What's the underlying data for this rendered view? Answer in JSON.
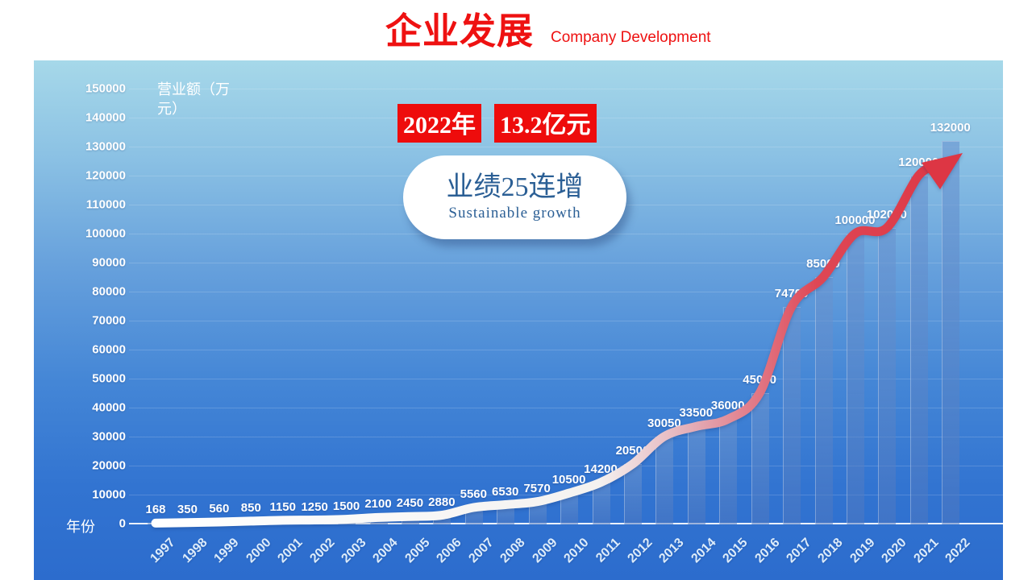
{
  "page": {
    "title": "企业发展",
    "subtitle": "Company Development"
  },
  "callout": {
    "year_highlight": "2022年",
    "amount_highlight": "13.2亿元",
    "bubble_title": "业绩25连增",
    "bubble_subtitle": "Sustainable growth"
  },
  "chart_data": {
    "type": "bar",
    "title": "企业发展 Company Development",
    "ylabel": "营业额（万元）",
    "xlabel": "年份",
    "categories": [
      "1997",
      "1998",
      "1999",
      "2000",
      "2001",
      "2002",
      "2003",
      "2004",
      "2005",
      "2006",
      "2007",
      "2008",
      "2009",
      "2010",
      "2011",
      "2012",
      "2013",
      "2014",
      "2015",
      "2016",
      "2017",
      "2018",
      "2019",
      "2020",
      "2021",
      "2022"
    ],
    "values": [
      168,
      350,
      560,
      850,
      1150,
      1250,
      1500,
      2100,
      2450,
      2880,
      5560,
      6530,
      7570,
      10500,
      14200,
      20500,
      30050,
      33500,
      36000,
      45000,
      74700,
      85000,
      100000,
      102000,
      120000,
      132000
    ],
    "ylim": [
      0,
      150000
    ],
    "ytick_step": 10000,
    "grid": true,
    "legend": false,
    "overlays": "smoothed trend line from white to red ending in red arrow"
  },
  "colors": {
    "accent_red": "#ee1111",
    "highlight_red": "#ee0c0c",
    "bubble_blue": "#2b5f95",
    "panel_top": "#a6d8e9",
    "panel_bottom": "#2c6ccd",
    "curve_red": "#dd3644",
    "curve_stops": [
      {
        "o": 0.0,
        "c": "#ffffff"
      },
      {
        "o": 0.55,
        "c": "#f4f2f0"
      },
      {
        "o": 0.67,
        "c": "#e3aab4"
      },
      {
        "o": 0.75,
        "c": "#e17583"
      },
      {
        "o": 0.82,
        "c": "#de4755"
      },
      {
        "o": 1.0,
        "c": "#dd3644"
      }
    ]
  }
}
